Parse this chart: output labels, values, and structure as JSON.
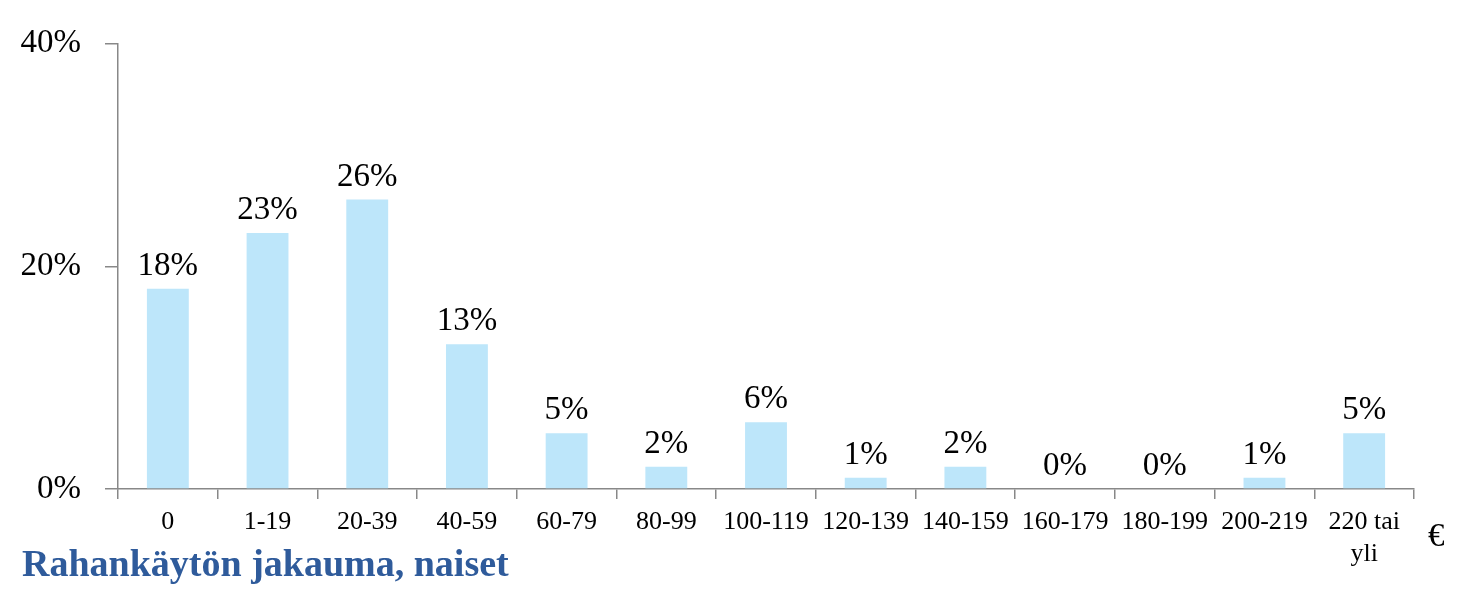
{
  "chart_data": {
    "type": "bar",
    "title": "Rahankäytön jakauma, naiset",
    "xlabel": "€",
    "categories": [
      "0",
      "1-19",
      "20-39",
      "40-59",
      "60-79",
      "80-99",
      "100-119",
      "120-139",
      "140-159",
      "160-179",
      "180-199",
      "200-219",
      "220 tai yli"
    ],
    "values": [
      18,
      23,
      26,
      13,
      5,
      2,
      6,
      1,
      2,
      0,
      0,
      1,
      5
    ],
    "value_labels": [
      "18%",
      "23%",
      "26%",
      "13%",
      "5%",
      "2%",
      "6%",
      "1%",
      "2%",
      "0%",
      "0%",
      "1%",
      "5%"
    ],
    "color": "#bde6fa",
    "ylim": [
      0,
      40
    ],
    "yticks": [
      {
        "value": 0,
        "label": "0%"
      },
      {
        "value": 20,
        "label": "20%"
      },
      {
        "value": 40,
        "label": "40%"
      }
    ],
    "grid": false,
    "legend": false
  }
}
